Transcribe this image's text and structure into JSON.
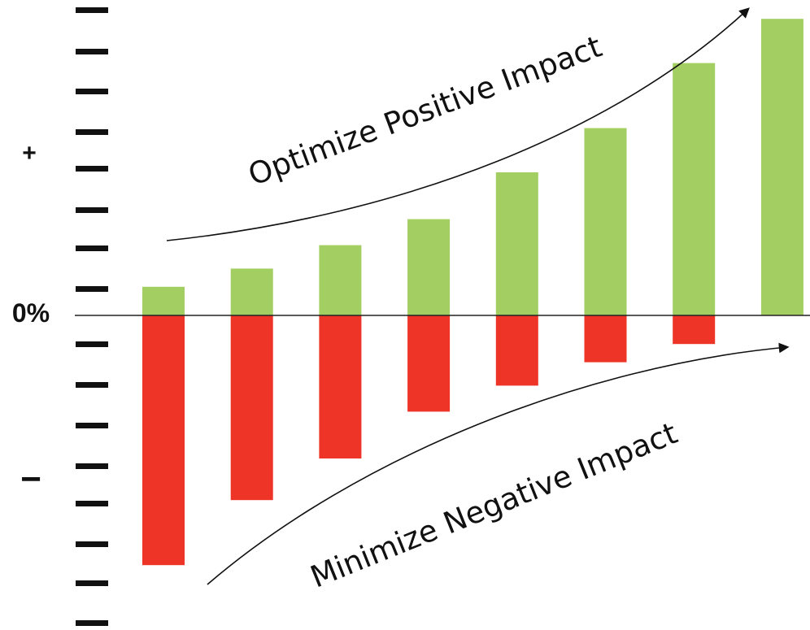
{
  "chart_data": {
    "type": "bar",
    "categories": [
      "",
      "",
      "",
      "",
      "",
      "",
      "",
      ""
    ],
    "series": [
      {
        "values": [
          11,
          18,
          27,
          37,
          55,
          72,
          97,
          114
        ],
        "color": "#a2ce62"
      },
      {
        "values": [
          -96,
          -71,
          -55,
          -37,
          -27,
          -18,
          -11,
          0
        ],
        "color": "#ee3327"
      }
    ],
    "ylim": [
      -117,
      117
    ],
    "baseline": 0,
    "axis_labels": {
      "plus": "+",
      "zero": "0%",
      "minus": "−"
    },
    "annotations": {
      "upper": "Optimize Positive Impact",
      "lower": "Minimize Negative Impact"
    },
    "grid": false,
    "legend": "none",
    "tick_color": "#111111",
    "axis_line_color": "#222222"
  }
}
